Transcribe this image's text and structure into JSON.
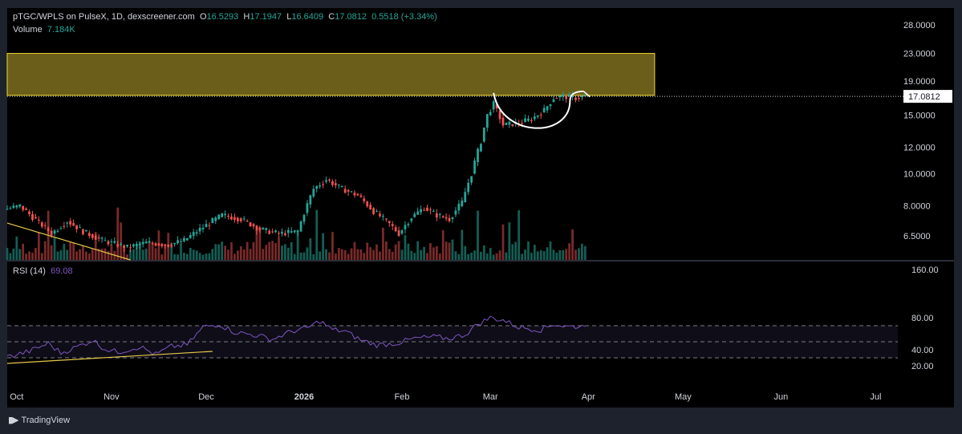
{
  "header": {
    "symbol": "pTGC/WPLS on PulseX, 1D, dexscreener.com",
    "o_label": "O",
    "o_value": "16.5293",
    "h_label": "H",
    "h_value": "17.1947",
    "l_label": "L",
    "l_value": "16.6409",
    "c_label": "C",
    "c_value": "17.0812",
    "change": "0.5518 (+3.34%)",
    "volume_label": "Volume",
    "volume_value": "7.184K"
  },
  "rsi_header": {
    "label": "RSI (14)",
    "value": "69.08"
  },
  "branding": {
    "logo_text": "TradingView"
  },
  "colors": {
    "bg": "#000000",
    "up": "#26a69a",
    "down": "#ef5350",
    "rsi_line": "#7e57c2",
    "zone_fill": "#6b5e1a",
    "zone_border": "#f0d830",
    "trend": "#e6c84a",
    "axis_text": "#d1d4dc",
    "frame": "#1e222d"
  },
  "chart_data": [
    {
      "type": "candlestick",
      "title": "pTGC/WPLS on PulseX, 1D, dexscreener.com",
      "last_price": 17.0812,
      "last_price_label": "17.0812",
      "y_scale": "log",
      "ylim": [
        5.5,
        31.5
      ],
      "y_ticks": [
        28.0,
        23.0,
        19.0,
        15.0,
        12.0,
        10.0,
        8.0,
        6.5
      ],
      "y_tick_labels": [
        "28.0000",
        "23.0000",
        "19.0000",
        "15.0000",
        "12.0000",
        "10.0000",
        "8.0000",
        "6.5000"
      ],
      "x_ticks": [
        "Oct",
        "Nov",
        "Dec",
        "2026",
        "Feb",
        "Mar",
        "Apr",
        "May",
        "Jun",
        "Jul"
      ],
      "x_tick_days": [
        16,
        46,
        76,
        107,
        138,
        166,
        197,
        227,
        258,
        288
      ],
      "x_day_range": [
        13,
        295
      ],
      "resistance_zone": {
        "low": 17.2,
        "high": 23.0,
        "day_start": 13,
        "day_end": 218
      },
      "trendline": {
        "day_start": 13,
        "price_start": 7.1,
        "day_end": 52,
        "price_end": 5.5
      },
      "cup_pattern": {
        "day_start": 167,
        "day_end": 195,
        "rim_price": 17.3,
        "bottom_price": 13.8
      },
      "price_path": [
        [
          13,
          7.8
        ],
        [
          18,
          8.0
        ],
        [
          22,
          7.4
        ],
        [
          28,
          6.6
        ],
        [
          33,
          7.2
        ],
        [
          38,
          6.7
        ],
        [
          44,
          6.3
        ],
        [
          52,
          6.0
        ],
        [
          58,
          6.2
        ],
        [
          65,
          6.1
        ],
        [
          70,
          6.3
        ],
        [
          75,
          6.8
        ],
        [
          82,
          7.5
        ],
        [
          88,
          7.3
        ],
        [
          94,
          6.8
        ],
        [
          100,
          6.6
        ],
        [
          106,
          6.7
        ],
        [
          111,
          9.0
        ],
        [
          115,
          9.6
        ],
        [
          120,
          9.0
        ],
        [
          125,
          8.6
        ],
        [
          130,
          7.7
        ],
        [
          134,
          7.2
        ],
        [
          138,
          6.6
        ],
        [
          142,
          7.4
        ],
        [
          146,
          7.9
        ],
        [
          150,
          7.5
        ],
        [
          154,
          7.3
        ],
        [
          158,
          8.2
        ],
        [
          161,
          10.0
        ],
        [
          164,
          12.5
        ],
        [
          166,
          15.0
        ],
        [
          168,
          16.2
        ],
        [
          171,
          14.0
        ],
        [
          176,
          14.2
        ],
        [
          180,
          14.6
        ],
        [
          184,
          15.5
        ],
        [
          187,
          16.9
        ],
        [
          190,
          17.1
        ],
        [
          194,
          16.9
        ],
        [
          196,
          17.08
        ]
      ],
      "volume_max": 10.0,
      "volume_spikes": {
        "day_starts": [
          26,
          48,
          111,
          162,
          175
        ]
      }
    },
    {
      "type": "line",
      "title": "RSI (14)",
      "last_value": 69.08,
      "y_ticks": [
        160.0,
        80.0,
        40.0,
        20.0
      ],
      "y_tick_labels": [
        "160.00",
        "80.00",
        "40.00",
        "20.00"
      ],
      "bands": {
        "upper": 70,
        "middle": 50,
        "lower": 30
      },
      "rsi_path": [
        [
          13,
          31
        ],
        [
          20,
          38
        ],
        [
          26,
          48
        ],
        [
          30,
          36
        ],
        [
          36,
          45
        ],
        [
          40,
          52
        ],
        [
          44,
          41
        ],
        [
          48,
          37
        ],
        [
          55,
          44
        ],
        [
          60,
          34
        ],
        [
          65,
          44
        ],
        [
          70,
          46
        ],
        [
          75,
          68
        ],
        [
          80,
          72
        ],
        [
          85,
          62
        ],
        [
          92,
          58
        ],
        [
          97,
          53
        ],
        [
          103,
          63
        ],
        [
          108,
          67
        ],
        [
          112,
          76
        ],
        [
          116,
          65
        ],
        [
          120,
          63
        ],
        [
          125,
          52
        ],
        [
          130,
          46
        ],
        [
          136,
          48
        ],
        [
          142,
          54
        ],
        [
          148,
          56
        ],
        [
          153,
          54
        ],
        [
          158,
          59
        ],
        [
          162,
          72
        ],
        [
          166,
          80
        ],
        [
          170,
          77
        ],
        [
          175,
          68
        ],
        [
          182,
          65
        ],
        [
          186,
          72
        ],
        [
          190,
          69
        ],
        [
          196,
          69.08
        ]
      ],
      "trendline": {
        "day_start": 13,
        "value_start": 23,
        "day_end": 78,
        "value_end": 38
      }
    }
  ]
}
